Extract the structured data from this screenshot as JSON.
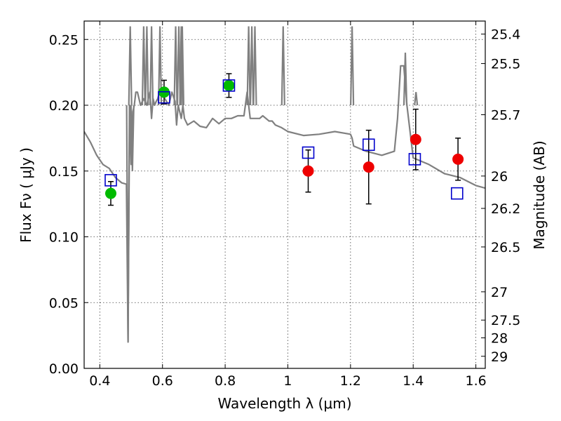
{
  "chart_data": {
    "type": "scatter",
    "xlabel": "Wavelength  λ (μm)",
    "ylabel": "Flux  Fν  ( μJy )",
    "y2label": "Magnitude (AB)",
    "xlim": [
      0.35,
      1.63
    ],
    "ylim": [
      0.0,
      0.264
    ],
    "grid": true,
    "x_ticks": [
      0.4,
      0.6,
      0.8,
      1.0,
      1.2,
      1.4,
      1.6
    ],
    "x_tick_labels": [
      "0.4",
      "0.6",
      "0.8",
      "1",
      "1.2",
      "1.4",
      "1.6"
    ],
    "y_ticks": [
      0.0,
      0.05,
      0.1,
      0.15,
      0.2,
      0.25
    ],
    "y_tick_labels": [
      "0.00",
      "0.05",
      "0.10",
      "0.15",
      "0.20",
      "0.25"
    ],
    "magnitude_ticks": [
      {
        "label": "25.4",
        "flux": 0.2541
      },
      {
        "label": "25.5",
        "flux": 0.2317
      },
      {
        "label": "25.7",
        "flux": 0.1928
      },
      {
        "label": "26",
        "flux": 0.1462
      },
      {
        "label": "26.2",
        "flux": 0.1216
      },
      {
        "label": "26.5",
        "flux": 0.0923
      },
      {
        "label": "27",
        "flux": 0.0582
      },
      {
        "label": "27.5",
        "flux": 0.0367
      },
      {
        "label": "28",
        "flux": 0.0232
      },
      {
        "label": "29",
        "flux": 0.0092
      }
    ],
    "colors": {
      "model": "#808080",
      "optical": "#00bb00",
      "infrared": "#ee0000",
      "model_photometry": "#0000cc",
      "errorbar": "#000000"
    },
    "series": [
      {
        "kind": "line",
        "color_key": "model",
        "x": [
          0.35,
          0.37,
          0.39,
          0.41,
          0.43,
          0.45,
          0.47,
          0.485,
          0.49,
          0.495,
          0.5,
          0.505,
          0.51,
          0.515,
          0.52,
          0.53,
          0.54,
          0.55,
          0.56,
          0.565,
          0.57,
          0.575,
          0.58,
          0.585,
          0.59,
          0.6,
          0.62,
          0.63,
          0.64,
          0.645,
          0.65,
          0.655,
          0.66,
          0.665,
          0.67,
          0.68,
          0.7,
          0.72,
          0.74,
          0.76,
          0.78,
          0.8,
          0.82,
          0.84,
          0.86,
          0.87,
          0.88,
          0.89,
          0.9,
          0.91,
          0.92,
          0.94,
          0.95,
          0.96,
          0.98,
          1.0,
          1.05,
          1.1,
          1.15,
          1.2,
          1.205,
          1.21,
          1.22,
          1.25,
          1.3,
          1.34,
          1.35,
          1.36,
          1.37,
          1.38,
          1.4,
          1.45,
          1.5,
          1.55,
          1.6,
          1.63
        ],
        "y": [
          0.18,
          0.172,
          0.162,
          0.155,
          0.152,
          0.145,
          0.141,
          0.14,
          0.02,
          0.2,
          0.155,
          0.195,
          0.2,
          0.21,
          0.21,
          0.2,
          0.205,
          0.2,
          0.21,
          0.19,
          0.205,
          0.2,
          0.203,
          0.205,
          0.21,
          0.208,
          0.2,
          0.21,
          0.203,
          0.185,
          0.2,
          0.195,
          0.19,
          0.2,
          0.19,
          0.185,
          0.188,
          0.184,
          0.183,
          0.19,
          0.186,
          0.19,
          0.19,
          0.192,
          0.192,
          0.21,
          0.19,
          0.19,
          0.19,
          0.19,
          0.192,
          0.188,
          0.188,
          0.185,
          0.183,
          0.18,
          0.177,
          0.178,
          0.18,
          0.178,
          0.175,
          0.169,
          0.168,
          0.165,
          0.162,
          0.165,
          0.19,
          0.23,
          0.23,
          0.2,
          0.16,
          0.155,
          0.148,
          0.145,
          0.139,
          0.137
        ]
      },
      {
        "kind": "line-spikes",
        "color_key": "model",
        "x": [
          0.49,
          0.497,
          0.504,
          0.54,
          0.55,
          0.565,
          0.592,
          0.642,
          0.652,
          0.66,
          0.663,
          0.875,
          0.885,
          0.895,
          0.985,
          1.205,
          1.375,
          1.409
        ],
        "y": [
          0.02,
          0.26,
          0.15,
          0.26,
          0.26,
          0.26,
          0.26,
          0.26,
          0.26,
          0.26,
          0.26,
          0.26,
          0.26,
          0.26,
          0.26,
          0.26,
          0.24,
          0.21
        ]
      },
      {
        "kind": "points-errorbars",
        "marker": "circle",
        "color_key": "optical",
        "x": [
          0.435,
          0.605,
          0.812
        ],
        "y": [
          0.133,
          0.21,
          0.215
        ],
        "yerr": [
          0.009,
          0.009,
          0.009
        ]
      },
      {
        "kind": "points-errorbars",
        "marker": "circle",
        "color_key": "infrared",
        "x": [
          1.065,
          1.258,
          1.408,
          1.543
        ],
        "y": [
          0.15,
          0.153,
          0.174,
          0.159
        ],
        "yerr": [
          0.016,
          0.028,
          0.023,
          0.016
        ]
      },
      {
        "kind": "points",
        "marker": "open-square",
        "color_key": "model_photometry",
        "x": [
          0.435,
          0.605,
          0.812,
          1.065,
          1.258,
          1.405,
          1.54
        ],
        "y": [
          0.143,
          0.206,
          0.215,
          0.164,
          0.17,
          0.159,
          0.133
        ]
      }
    ]
  }
}
